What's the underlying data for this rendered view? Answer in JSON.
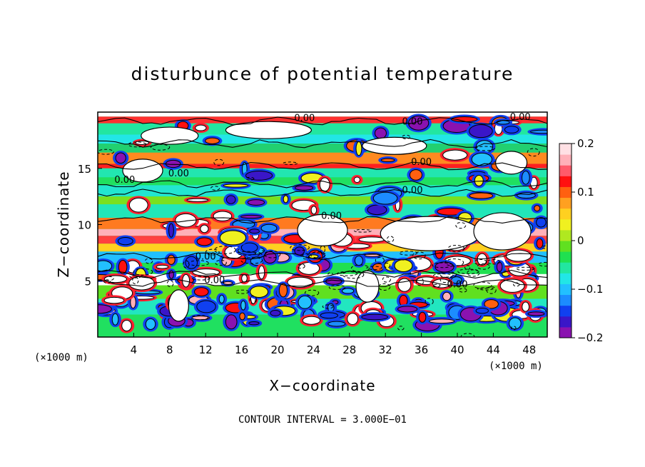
{
  "chart_data": {
    "type": "heatmap",
    "title": "disturbunce of potential temperature",
    "xlabel": "X−coordinate",
    "ylabel": "Z−coordinate",
    "x_units_left": "(×1000 m)",
    "x_units_right": "(×1000 m)",
    "xlim": [
      0,
      50
    ],
    "ylim": [
      0,
      20
    ],
    "x_ticks": [
      "4",
      "8",
      "12",
      "16",
      "20",
      "24",
      "28",
      "32",
      "36",
      "40",
      "44",
      "48"
    ],
    "y_ticks": [
      "5",
      "10",
      "15"
    ],
    "colorbar": {
      "vmin": -0.2,
      "vmax": 0.2,
      "tick_labels": [
        "0.2",
        "0.1",
        "0",
        "−0.1",
        "−0.2"
      ],
      "colors": [
        "#8a12b0",
        "#3a16c8",
        "#1040f0",
        "#1c8cff",
        "#22c0ff",
        "#22e6e6",
        "#22e6a0",
        "#20e050",
        "#60e020",
        "#b0e820",
        "#f0f020",
        "#ffd020",
        "#ffa020",
        "#ff6010",
        "#ff1010",
        "#ff5a6a",
        "#ffb0b8",
        "#ffe0e4"
      ]
    },
    "contour_labels": [
      {
        "text": "0.00",
        "x": 23,
        "y": 19.2
      },
      {
        "text": "0.00",
        "x": 35,
        "y": 18.9
      },
      {
        "text": "0.00",
        "x": 47,
        "y": 19.3
      },
      {
        "text": "0.00",
        "x": 36,
        "y": 15.3
      },
      {
        "text": "0.00",
        "x": 9,
        "y": 14.3
      },
      {
        "text": "0.00",
        "x": 3,
        "y": 13.7
      },
      {
        "text": "0.00",
        "x": 35,
        "y": 12.8
      },
      {
        "text": "0.00",
        "x": 26,
        "y": 10.5
      },
      {
        "text": "0.00",
        "x": 12,
        "y": 6.9
      },
      {
        "text": "0.00",
        "x": 13,
        "y": 4.8
      },
      {
        "text": "0.00",
        "x": 40,
        "y": 4.4
      }
    ],
    "annotation": "CONTOUR INTERVAL = 3.000E−01"
  }
}
